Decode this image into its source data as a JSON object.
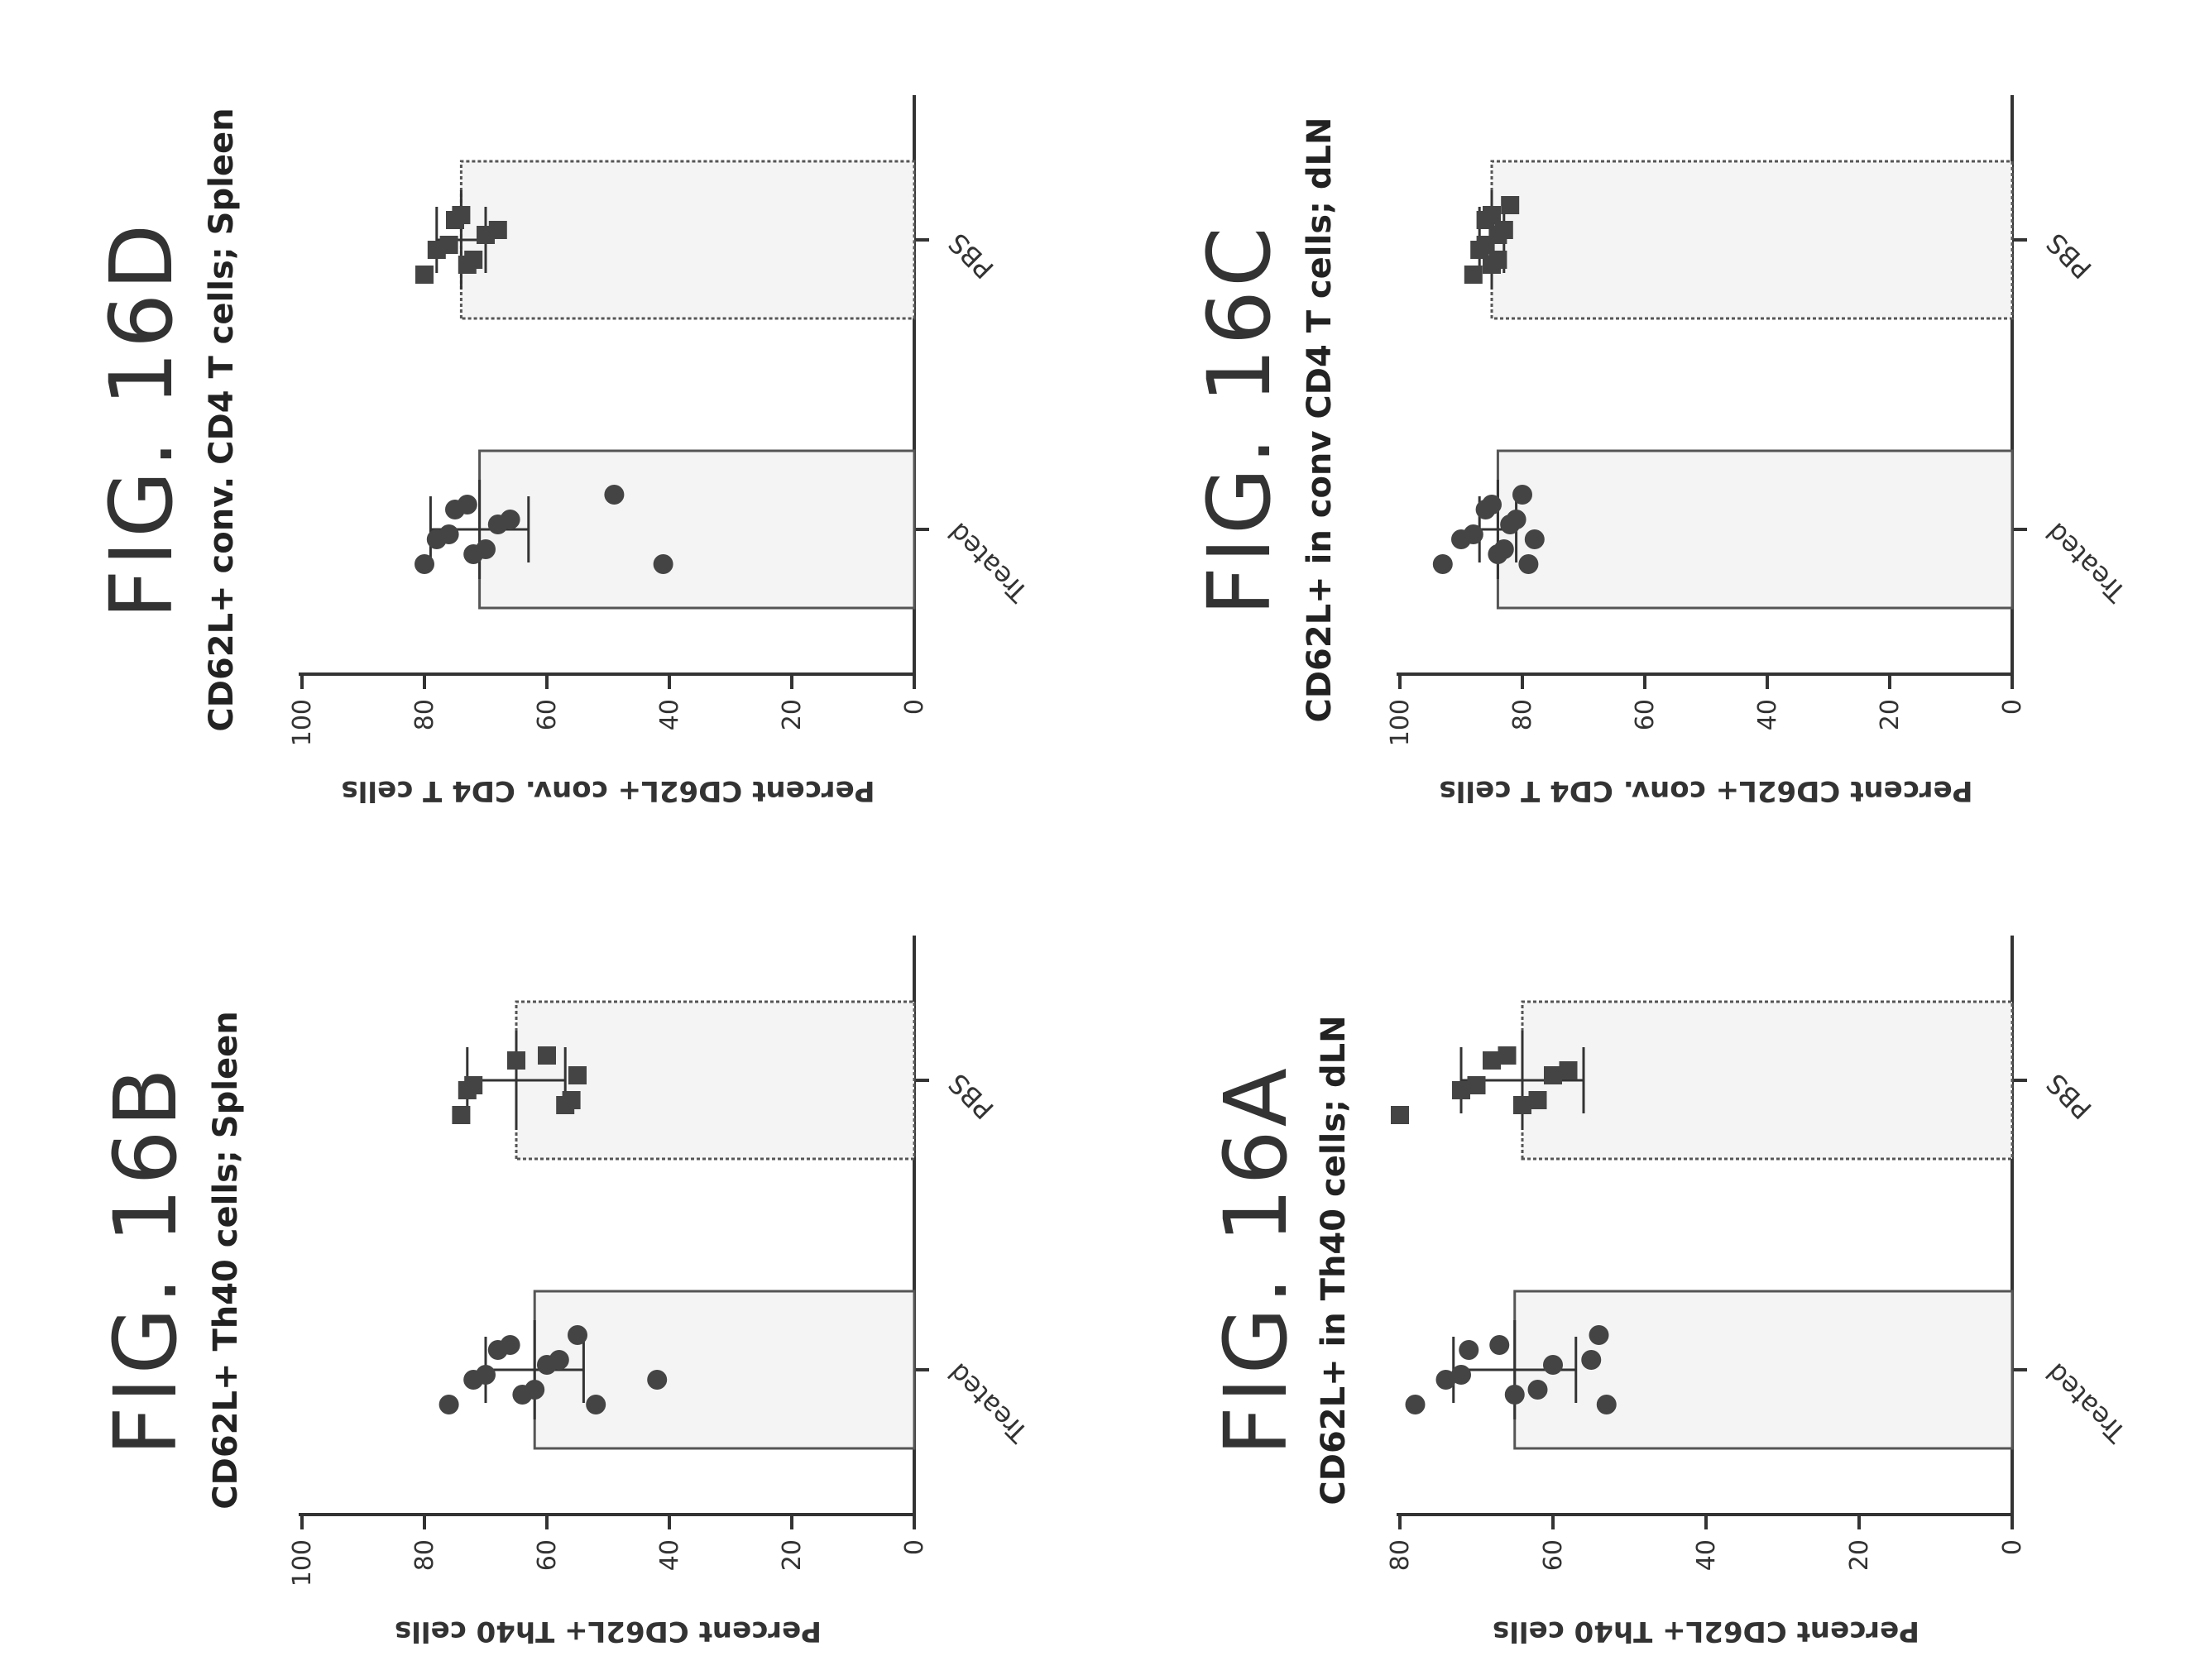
{
  "chart_data": [
    {
      "figure": "FIG. 16A",
      "type": "bar",
      "title": "CD62L+ in Th40 cells; dLN",
      "ylabel": "Percent CD62L+ Th40 cells",
      "ylim": [
        0,
        80
      ],
      "yticks": [
        0,
        20,
        40,
        60,
        80
      ],
      "categories": [
        "Treated",
        "PBS"
      ],
      "values": [
        65,
        64
      ],
      "errors": [
        8,
        8
      ],
      "points": [
        [
          78,
          74,
          72,
          71,
          67,
          65,
          62,
          60,
          55,
          54,
          53
        ],
        [
          80,
          72,
          70,
          68,
          66,
          64,
          62,
          60,
          58
        ]
      ]
    },
    {
      "figure": "FIG. 16B",
      "type": "bar",
      "title": "CD62L+ Th40 cells; Spleen",
      "ylabel": "Percent CD62L+ Th40 cells",
      "ylim": [
        0,
        100
      ],
      "yticks": [
        0,
        20,
        40,
        60,
        80,
        100
      ],
      "categories": [
        "Treated",
        "PBS"
      ],
      "values": [
        62,
        65
      ],
      "errors": [
        8,
        8
      ],
      "points": [
        [
          76,
          72,
          70,
          68,
          66,
          64,
          62,
          60,
          58,
          55,
          52,
          42
        ],
        [
          74,
          73,
          72,
          65,
          60,
          57,
          56,
          55
        ]
      ]
    },
    {
      "figure": "FIG. 16C",
      "type": "bar",
      "title": "CD62L+ in conv CD4 T cells; dLN",
      "ylabel": "Percent CD62L+ conv. CD4 T cells",
      "ylim": [
        0,
        100
      ],
      "yticks": [
        0,
        20,
        40,
        60,
        80,
        100
      ],
      "categories": [
        "Treated",
        "PBS"
      ],
      "values": [
        84,
        85
      ],
      "errors": [
        3,
        2
      ],
      "points": [
        [
          93,
          90,
          88,
          86,
          85,
          84,
          83,
          82,
          81,
          80,
          79,
          78
        ],
        [
          88,
          87,
          86,
          86,
          85,
          85,
          84,
          84,
          83,
          82
        ]
      ]
    },
    {
      "figure": "FIG. 16D",
      "type": "bar",
      "title": "CD62L+ conv. CD4 T cells; Spleen",
      "ylabel": "Percent CD62L+ conv. CD4 T cells",
      "ylim": [
        0,
        100
      ],
      "yticks": [
        0,
        20,
        40,
        60,
        80,
        100
      ],
      "categories": [
        "Treated",
        "PBS"
      ],
      "values": [
        71,
        74
      ],
      "errors": [
        8,
        4
      ],
      "points": [
        [
          80,
          78,
          76,
          75,
          73,
          72,
          70,
          68,
          66,
          49,
          41
        ],
        [
          80,
          78,
          76,
          75,
          74,
          73,
          72,
          70,
          68
        ]
      ]
    }
  ]
}
